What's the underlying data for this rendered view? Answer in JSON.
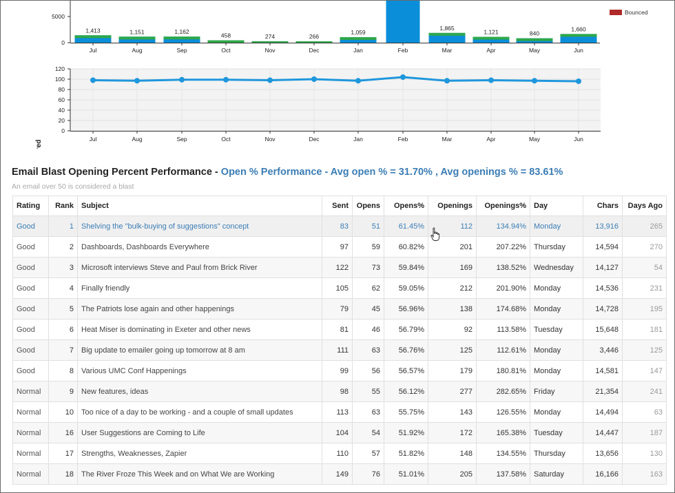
{
  "months": [
    "Jul",
    "Aug",
    "Sep",
    "Oct",
    "Nov",
    "Dec",
    "Jan",
    "Feb",
    "Mar",
    "Apr",
    "May",
    "Jun"
  ],
  "bar_chart": {
    "y_ticks": [
      "5000",
      "0"
    ],
    "values": [
      "1,413",
      "1,151",
      "1,162",
      "458",
      "274",
      "266",
      "1,059",
      "",
      "1,865",
      "1,121",
      "840",
      "1,660"
    ],
    "legend_label": "Bounced",
    "colors": {
      "primary": "#0b8ed9",
      "delivered": "#2ea84a",
      "bounced": "#b02a2a"
    }
  },
  "line_chart": {
    "y_label": "% Delivered",
    "y_ticks": [
      "120",
      "100",
      "80",
      "60",
      "40",
      "20",
      "0"
    ],
    "values": [
      98,
      97,
      99,
      99,
      98,
      100,
      97,
      104,
      97,
      98,
      97,
      96
    ],
    "color": "#1f97dc"
  },
  "chart_data": [
    {
      "type": "bar",
      "categories": [
        "Jul",
        "Aug",
        "Sep",
        "Oct",
        "Nov",
        "Dec",
        "Jan",
        "Feb",
        "Mar",
        "Apr",
        "May",
        "Jun"
      ],
      "values": [
        1413,
        1151,
        1162,
        458,
        274,
        266,
        1059,
        null,
        1865,
        1121,
        840,
        1660
      ],
      "legend": [
        "Bounced"
      ]
    },
    {
      "type": "line",
      "x": [
        "Jul",
        "Aug",
        "Sep",
        "Oct",
        "Nov",
        "Dec",
        "Jan",
        "Feb",
        "Mar",
        "Apr",
        "May",
        "Jun"
      ],
      "values": [
        98,
        97,
        99,
        99,
        98,
        100,
        97,
        104,
        97,
        98,
        97,
        96
      ],
      "ylabel": "% Delivered",
      "ylim": [
        0,
        120
      ]
    }
  ],
  "section": {
    "title_bold": "Email Blast Opening Percent Performance - ",
    "title_highlight": "Open % Performance - Avg open % = 31.70% , Avg openings % = 83.61%",
    "note": "An email over 50 is considered a blast"
  },
  "table": {
    "headers": [
      "Rating",
      "Rank",
      "Subject",
      "Sent",
      "Opens",
      "Opens%",
      "Openings",
      "Openings%",
      "Day",
      "Chars",
      "Days Ago"
    ],
    "rows": [
      [
        "Good",
        "1",
        "Shelving the \"bulk-buying of suggestions\" concept",
        "83",
        "51",
        "61.45%",
        "112",
        "134.94%",
        "Monday",
        "13,916",
        "265"
      ],
      [
        "Good",
        "2",
        "Dashboards, Dashboards Everywhere",
        "97",
        "59",
        "60.82%",
        "201",
        "207.22%",
        "Thursday",
        "14,594",
        "270"
      ],
      [
        "Good",
        "3",
        "Microsoft interviews Steve and Paul from Brick River",
        "122",
        "73",
        "59.84%",
        "169",
        "138.52%",
        "Wednesday",
        "14,127",
        "54"
      ],
      [
        "Good",
        "4",
        "Finally friendly",
        "105",
        "62",
        "59.05%",
        "212",
        "201.90%",
        "Monday",
        "14,536",
        "231"
      ],
      [
        "Good",
        "5",
        "The Patriots lose again and other happenings",
        "79",
        "45",
        "56.96%",
        "138",
        "174.68%",
        "Monday",
        "14,728",
        "195"
      ],
      [
        "Good",
        "6",
        "Heat Miser is dominating in Exeter and other news",
        "81",
        "46",
        "56.79%",
        "92",
        "113.58%",
        "Tuesday",
        "15,648",
        "181"
      ],
      [
        "Good",
        "7",
        "Big update to emailer going up tomorrow at 8 am",
        "111",
        "63",
        "56.76%",
        "125",
        "112.61%",
        "Monday",
        "3,446",
        "125"
      ],
      [
        "Good",
        "8",
        "Various UMC Conf Happenings",
        "99",
        "56",
        "56.57%",
        "179",
        "180.81%",
        "Monday",
        "14,581",
        "147"
      ],
      [
        "Normal",
        "9",
        "New features, ideas",
        "98",
        "55",
        "56.12%",
        "277",
        "282.65%",
        "Friday",
        "21,354",
        "241"
      ],
      [
        "Normal",
        "10",
        "Too nice of a day to be working - and a couple of small updates",
        "113",
        "63",
        "55.75%",
        "143",
        "126.55%",
        "Monday",
        "14,494",
        "63"
      ],
      [
        "Normal",
        "16",
        "User Suggestions are Coming to Life",
        "104",
        "54",
        "51.92%",
        "172",
        "165.38%",
        "Tuesday",
        "14,447",
        "187"
      ],
      [
        "Normal",
        "17",
        "Strengths, Weaknesses, Zapier",
        "110",
        "57",
        "51.82%",
        "148",
        "134.55%",
        "Thursday",
        "13,656",
        "130"
      ],
      [
        "Normal",
        "18",
        "The River Froze This Week and on What We are Working",
        "149",
        "76",
        "51.01%",
        "205",
        "137.58%",
        "Saturday",
        "16,166",
        "163"
      ]
    ]
  }
}
